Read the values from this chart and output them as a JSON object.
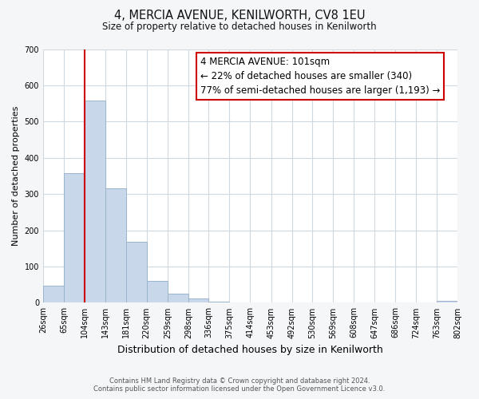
{
  "title": "4, MERCIA AVENUE, KENILWORTH, CV8 1EU",
  "subtitle": "Size of property relative to detached houses in Kenilworth",
  "xlabel": "Distribution of detached houses by size in Kenilworth",
  "ylabel": "Number of detached properties",
  "bin_edges": [
    26,
    65,
    104,
    143,
    181,
    220,
    259,
    298,
    336,
    375,
    414,
    453,
    492,
    530,
    569,
    608,
    647,
    686,
    724,
    763,
    802
  ],
  "bin_labels": [
    "26sqm",
    "65sqm",
    "104sqm",
    "143sqm",
    "181sqm",
    "220sqm",
    "259sqm",
    "298sqm",
    "336sqm",
    "375sqm",
    "414sqm",
    "453sqm",
    "492sqm",
    "530sqm",
    "569sqm",
    "608sqm",
    "647sqm",
    "686sqm",
    "724sqm",
    "763sqm",
    "802sqm"
  ],
  "bar_heights": [
    47,
    357,
    557,
    315,
    168,
    60,
    25,
    12,
    4,
    0,
    0,
    0,
    0,
    0,
    0,
    0,
    0,
    0,
    0,
    5
  ],
  "bar_color": "#c8d8ea",
  "bar_edge_color": "#9ab4cc",
  "property_line_x": 104,
  "property_line_color": "#cc0000",
  "ylim": [
    0,
    700
  ],
  "yticks": [
    0,
    100,
    200,
    300,
    400,
    500,
    600,
    700
  ],
  "annotation_title": "4 MERCIA AVENUE: 101sqm",
  "annotation_line1": "← 22% of detached houses are smaller (340)",
  "annotation_line2": "77% of semi-detached houses are larger (1,193) →",
  "annotation_box_color": "#ffffff",
  "annotation_box_edge": "#cc0000",
  "footer_line1": "Contains HM Land Registry data © Crown copyright and database right 2024.",
  "footer_line2": "Contains public sector information licensed under the Open Government Licence v3.0.",
  "background_color": "#f4f6f8",
  "plot_background": "#ffffff",
  "grid_color": "#d0d8e0"
}
